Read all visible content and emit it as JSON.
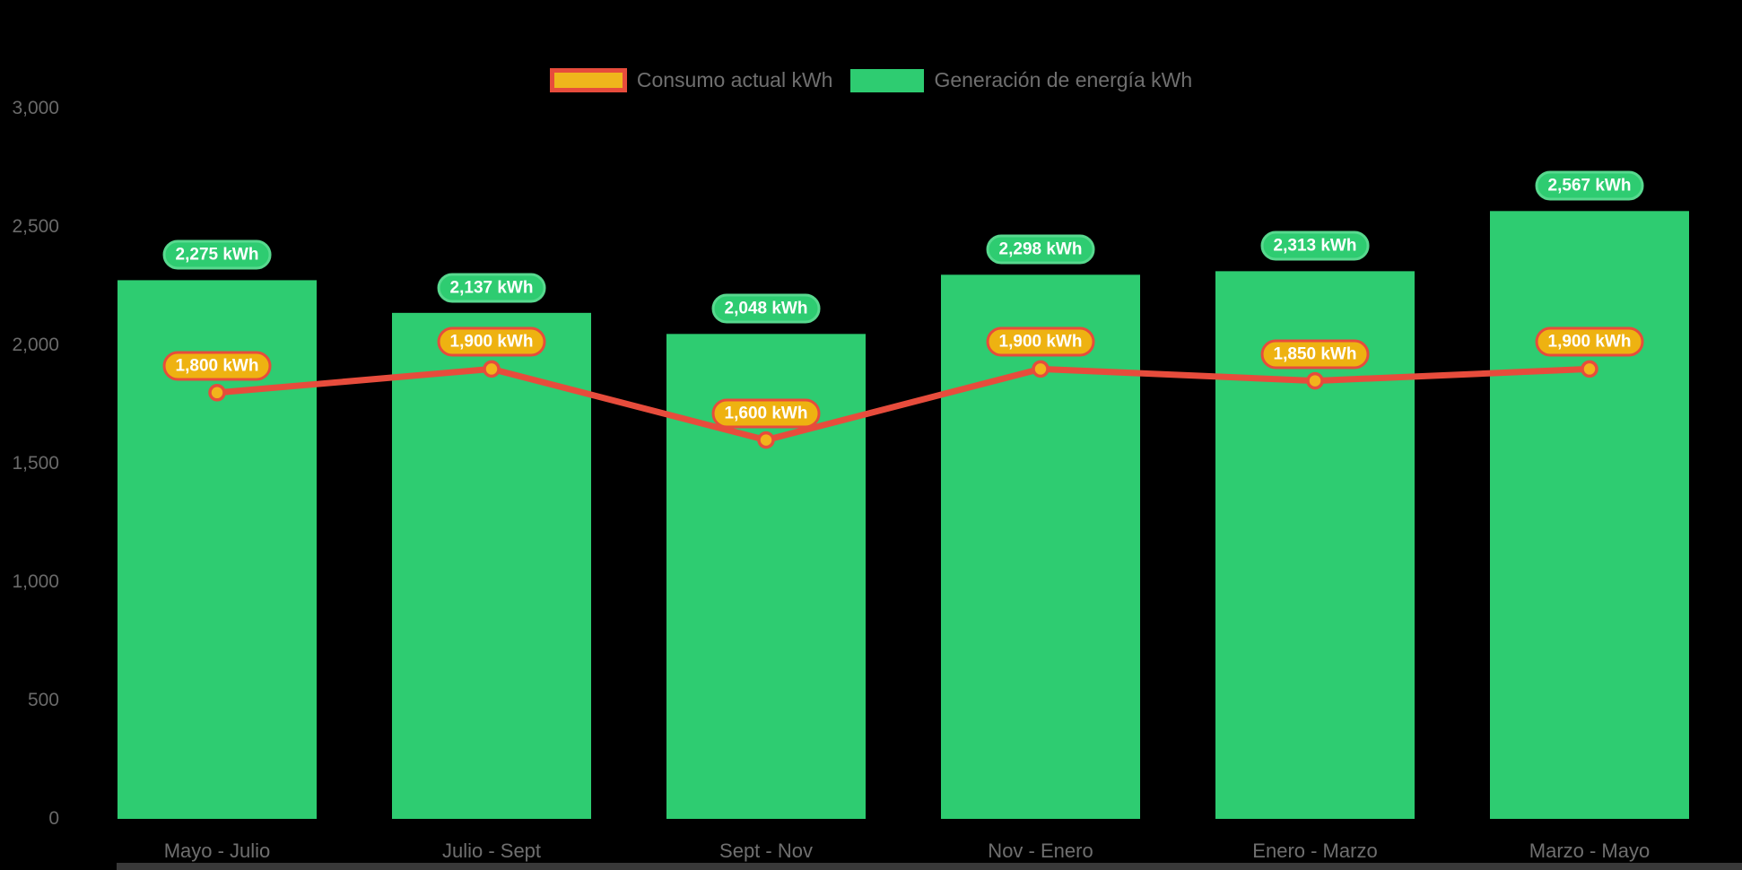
{
  "legend": {
    "items": [
      {
        "id": "consumo",
        "label": "Consumo actual kWh",
        "swatch_fill": "#efb61c",
        "swatch_border": "#e74c3c"
      },
      {
        "id": "generacion",
        "label": "Generación de energía kWh",
        "swatch_fill": "#2ecc71",
        "swatch_border": ""
      }
    ]
  },
  "chart_data": {
    "type": "bar",
    "subtype": "bar+line combo",
    "categories": [
      "Mayo - Julio",
      "Julio - Sept",
      "Sept - Nov",
      "Nov - Enero",
      "Enero - Marzo",
      "Marzo - Mayo"
    ],
    "series": [
      {
        "name": "Generación de energía kWh",
        "type": "bar",
        "color": "#2ecc71",
        "values": [
          2275,
          2137,
          2048,
          2298,
          2313,
          2567
        ],
        "labels": [
          "2,275 kWh",
          "2,137 kWh",
          "2,048 kWh",
          "2,298 kWh",
          "2,313 kWh",
          "2,567 kWh"
        ],
        "label_badge_fill": "#2ecc71",
        "label_badge_border": "#57d98e"
      },
      {
        "name": "Consumo actual kWh",
        "type": "line",
        "color": "#e74c3c",
        "marker_fill": "#f2b31c",
        "values": [
          1800,
          1900,
          1600,
          1900,
          1850,
          1900
        ],
        "labels": [
          "1,800 kWh",
          "1,900 kWh",
          "1,600 kWh",
          "1,900 kWh",
          "1,850 kWh",
          "1,900 kWh"
        ],
        "label_badge_fill": "#eeb211",
        "label_badge_border": "#e74c3c"
      }
    ],
    "title": "",
    "xlabel": "",
    "ylabel": "",
    "ylim": [
      0,
      3000
    ],
    "yticks": [
      0,
      500,
      1000,
      1500,
      2000,
      2500,
      3000
    ],
    "ytick_labels": [
      "0",
      "500",
      "1,000",
      "1,500",
      "2,000",
      "2,500",
      "3,000"
    ],
    "grid": false,
    "legend_position": "top-center",
    "background": "#000000",
    "axis_text_color": "#6a6a6a"
  }
}
